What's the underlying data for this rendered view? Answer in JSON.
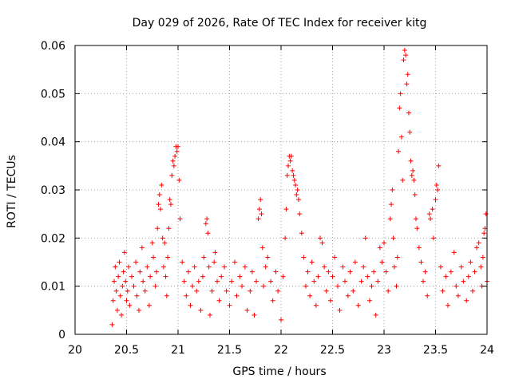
{
  "chart_data": {
    "type": "scatter",
    "title": "Day 029 of 2026, Rate Of TEC Index for receiver kitg",
    "xlabel": "GPS time / hours",
    "ylabel": "ROTI / TECUs",
    "xlim": [
      20,
      24
    ],
    "ylim": [
      0,
      0.06
    ],
    "x_ticks": [
      20,
      20.5,
      21,
      21.5,
      22,
      22.5,
      23,
      23.5,
      24
    ],
    "x_tick_labels": [
      "20",
      "20.5",
      "21",
      "21.5",
      "22",
      "22.5",
      "23",
      "23.5",
      "24"
    ],
    "y_ticks": [
      0,
      0.01,
      0.02,
      0.03,
      0.04,
      0.05,
      0.06
    ],
    "y_tick_labels": [
      "0",
      "0.01",
      "0.02",
      "0.03",
      "0.04",
      "0.05",
      "0.06"
    ],
    "grid": true,
    "marker": "plus",
    "color": "#ff0000",
    "series": [
      {
        "name": "ROTI",
        "points": [
          [
            20.36,
            0.002
          ],
          [
            20.37,
            0.007
          ],
          [
            20.38,
            0.011
          ],
          [
            20.39,
            0.014
          ],
          [
            20.4,
            0.009
          ],
          [
            20.41,
            0.005
          ],
          [
            20.42,
            0.012
          ],
          [
            20.43,
            0.015
          ],
          [
            20.44,
            0.008
          ],
          [
            20.45,
            0.004
          ],
          [
            20.46,
            0.01
          ],
          [
            20.47,
            0.013
          ],
          [
            20.48,
            0.017
          ],
          [
            20.49,
            0.011
          ],
          [
            20.5,
            0.007
          ],
          [
            20.51,
            0.009
          ],
          [
            20.52,
            0.014
          ],
          [
            20.53,
            0.006
          ],
          [
            20.55,
            0.012
          ],
          [
            20.57,
            0.01
          ],
          [
            20.59,
            0.015
          ],
          [
            20.6,
            0.008
          ],
          [
            20.62,
            0.005
          ],
          [
            20.63,
            0.013
          ],
          [
            20.65,
            0.018
          ],
          [
            20.66,
            0.011
          ],
          [
            20.68,
            0.009
          ],
          [
            20.7,
            0.014
          ],
          [
            20.72,
            0.006
          ],
          [
            20.73,
            0.012
          ],
          [
            20.75,
            0.019
          ],
          [
            20.76,
            0.016
          ],
          [
            20.78,
            0.01
          ],
          [
            20.79,
            0.013
          ],
          [
            20.8,
            0.022
          ],
          [
            20.81,
            0.027
          ],
          [
            20.82,
            0.029
          ],
          [
            20.83,
            0.026
          ],
          [
            20.84,
            0.031
          ],
          [
            20.85,
            0.02
          ],
          [
            20.86,
            0.014
          ],
          [
            20.87,
            0.019
          ],
          [
            20.88,
            0.012
          ],
          [
            20.89,
            0.008
          ],
          [
            20.9,
            0.016
          ],
          [
            20.91,
            0.022
          ],
          [
            20.92,
            0.028
          ],
          [
            20.93,
            0.027
          ],
          [
            20.94,
            0.033
          ],
          [
            20.95,
            0.036
          ],
          [
            20.96,
            0.035
          ],
          [
            20.97,
            0.037
          ],
          [
            20.98,
            0.039
          ],
          [
            20.99,
            0.038
          ],
          [
            21.0,
            0.039
          ],
          [
            21.01,
            0.032
          ],
          [
            21.02,
            0.024
          ],
          [
            21.04,
            0.015
          ],
          [
            21.06,
            0.011
          ],
          [
            21.08,
            0.008
          ],
          [
            21.1,
            0.013
          ],
          [
            21.12,
            0.006
          ],
          [
            21.14,
            0.01
          ],
          [
            21.16,
            0.014
          ],
          [
            21.18,
            0.009
          ],
          [
            21.2,
            0.011
          ],
          [
            21.22,
            0.005
          ],
          [
            21.24,
            0.012
          ],
          [
            21.25,
            0.016
          ],
          [
            21.27,
            0.023
          ],
          [
            21.28,
            0.024
          ],
          [
            21.29,
            0.021
          ],
          [
            21.3,
            0.014
          ],
          [
            21.31,
            0.004
          ],
          [
            21.33,
            0.009
          ],
          [
            21.35,
            0.015
          ],
          [
            21.36,
            0.017
          ],
          [
            21.38,
            0.011
          ],
          [
            21.4,
            0.007
          ],
          [
            21.42,
            0.012
          ],
          [
            21.45,
            0.014
          ],
          [
            21.47,
            0.009
          ],
          [
            21.5,
            0.006
          ],
          [
            21.52,
            0.011
          ],
          [
            21.55,
            0.015
          ],
          [
            21.57,
            0.008
          ],
          [
            21.6,
            0.012
          ],
          [
            21.62,
            0.01
          ],
          [
            21.65,
            0.014
          ],
          [
            21.67,
            0.005
          ],
          [
            21.7,
            0.009
          ],
          [
            21.72,
            0.013
          ],
          [
            21.74,
            0.004
          ],
          [
            21.76,
            0.011
          ],
          [
            21.78,
            0.024
          ],
          [
            21.79,
            0.026
          ],
          [
            21.8,
            0.028
          ],
          [
            21.81,
            0.025
          ],
          [
            21.82,
            0.018
          ],
          [
            21.83,
            0.01
          ],
          [
            21.85,
            0.014
          ],
          [
            21.87,
            0.016
          ],
          [
            21.9,
            0.011
          ],
          [
            21.92,
            0.007
          ],
          [
            21.95,
            0.013
          ],
          [
            21.97,
            0.009
          ],
          [
            22.0,
            0.003
          ],
          [
            22.02,
            0.012
          ],
          [
            22.04,
            0.02
          ],
          [
            22.05,
            0.026
          ],
          [
            22.06,
            0.033
          ],
          [
            22.07,
            0.035
          ],
          [
            22.08,
            0.037
          ],
          [
            22.09,
            0.036
          ],
          [
            22.1,
            0.037
          ],
          [
            22.11,
            0.034
          ],
          [
            22.12,
            0.033
          ],
          [
            22.13,
            0.032
          ],
          [
            22.14,
            0.031
          ],
          [
            22.15,
            0.029
          ],
          [
            22.16,
            0.03
          ],
          [
            22.17,
            0.028
          ],
          [
            22.18,
            0.025
          ],
          [
            22.2,
            0.021
          ],
          [
            22.22,
            0.016
          ],
          [
            22.24,
            0.01
          ],
          [
            22.26,
            0.013
          ],
          [
            22.28,
            0.008
          ],
          [
            22.3,
            0.015
          ],
          [
            22.32,
            0.011
          ],
          [
            22.34,
            0.006
          ],
          [
            22.36,
            0.012
          ],
          [
            22.38,
            0.02
          ],
          [
            22.4,
            0.019
          ],
          [
            22.42,
            0.014
          ],
          [
            22.44,
            0.009
          ],
          [
            22.46,
            0.013
          ],
          [
            22.48,
            0.007
          ],
          [
            22.5,
            0.012
          ],
          [
            22.52,
            0.016
          ],
          [
            22.55,
            0.01
          ],
          [
            22.57,
            0.005
          ],
          [
            22.6,
            0.014
          ],
          [
            22.62,
            0.011
          ],
          [
            22.65,
            0.008
          ],
          [
            22.67,
            0.013
          ],
          [
            22.7,
            0.009
          ],
          [
            22.72,
            0.015
          ],
          [
            22.75,
            0.006
          ],
          [
            22.78,
            0.011
          ],
          [
            22.8,
            0.014
          ],
          [
            22.82,
            0.02
          ],
          [
            22.84,
            0.012
          ],
          [
            22.86,
            0.007
          ],
          [
            22.88,
            0.01
          ],
          [
            22.9,
            0.013
          ],
          [
            22.92,
            0.004
          ],
          [
            22.94,
            0.011
          ],
          [
            22.96,
            0.018
          ],
          [
            22.98,
            0.015
          ],
          [
            23.0,
            0.019
          ],
          [
            23.02,
            0.013
          ],
          [
            23.04,
            0.009
          ],
          [
            23.06,
            0.024
          ],
          [
            23.07,
            0.027
          ],
          [
            23.08,
            0.03
          ],
          [
            23.09,
            0.02
          ],
          [
            23.1,
            0.014
          ],
          [
            23.12,
            0.01
          ],
          [
            23.13,
            0.016
          ],
          [
            23.14,
            0.038
          ],
          [
            23.15,
            0.047
          ],
          [
            23.16,
            0.05
          ],
          [
            23.17,
            0.041
          ],
          [
            23.18,
            0.032
          ],
          [
            23.19,
            0.057
          ],
          [
            23.2,
            0.059
          ],
          [
            23.21,
            0.058
          ],
          [
            23.22,
            0.052
          ],
          [
            23.23,
            0.054
          ],
          [
            23.24,
            0.046
          ],
          [
            23.25,
            0.042
          ],
          [
            23.26,
            0.036
          ],
          [
            23.27,
            0.033
          ],
          [
            23.28,
            0.034
          ],
          [
            23.29,
            0.032
          ],
          [
            23.3,
            0.029
          ],
          [
            23.31,
            0.024
          ],
          [
            23.32,
            0.022
          ],
          [
            23.34,
            0.018
          ],
          [
            23.36,
            0.015
          ],
          [
            23.38,
            0.011
          ],
          [
            23.4,
            0.013
          ],
          [
            23.42,
            0.008
          ],
          [
            23.44,
            0.025
          ],
          [
            23.45,
            0.024
          ],
          [
            23.47,
            0.026
          ],
          [
            23.48,
            0.02
          ],
          [
            23.5,
            0.028
          ],
          [
            23.51,
            0.031
          ],
          [
            23.52,
            0.03
          ],
          [
            23.53,
            0.035
          ],
          [
            23.55,
            0.014
          ],
          [
            23.57,
            0.009
          ],
          [
            23.6,
            0.012
          ],
          [
            23.62,
            0.006
          ],
          [
            23.65,
            0.013
          ],
          [
            23.68,
            0.017
          ],
          [
            23.7,
            0.01
          ],
          [
            23.72,
            0.008
          ],
          [
            23.75,
            0.014
          ],
          [
            23.77,
            0.011
          ],
          [
            23.8,
            0.007
          ],
          [
            23.82,
            0.012
          ],
          [
            23.84,
            0.015
          ],
          [
            23.86,
            0.009
          ],
          [
            23.88,
            0.013
          ],
          [
            23.9,
            0.018
          ],
          [
            23.92,
            0.019
          ],
          [
            23.94,
            0.014
          ],
          [
            23.95,
            0.01
          ],
          [
            23.96,
            0.016
          ],
          [
            23.97,
            0.021
          ],
          [
            23.98,
            0.022
          ],
          [
            23.99,
            0.025
          ],
          [
            24.0,
            0.011
          ]
        ]
      }
    ]
  }
}
